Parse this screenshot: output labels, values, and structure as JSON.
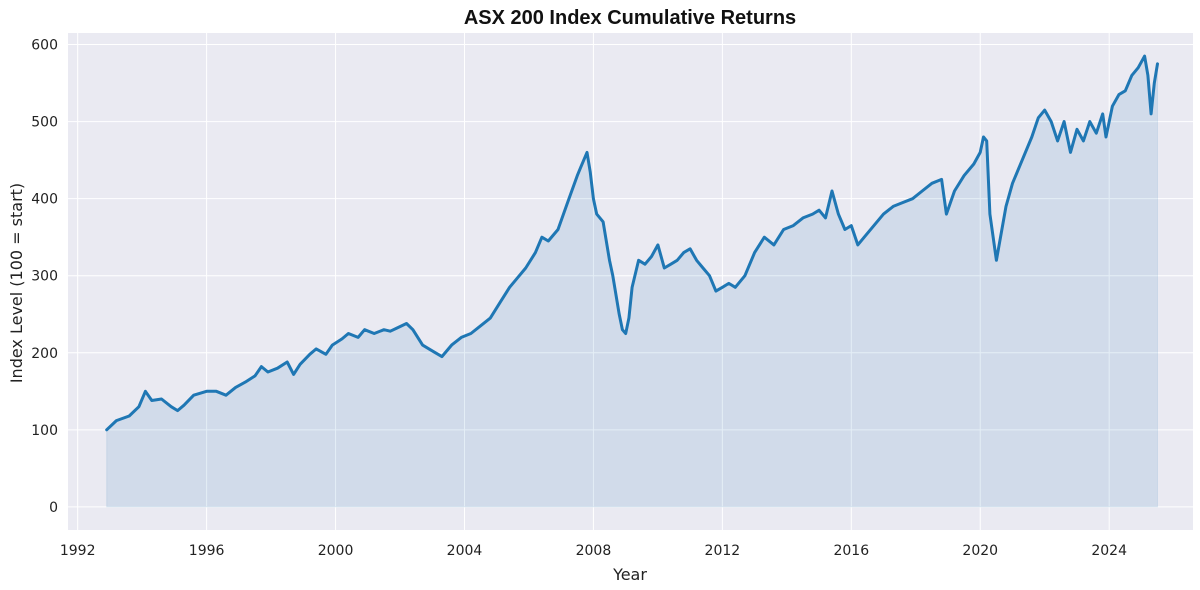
{
  "chart_data": {
    "type": "area",
    "title": "ASX 200 Index Cumulative Returns",
    "xlabel": "Year",
    "ylabel": "Index Level (100 = start)",
    "xlim": [
      1991.7,
      2026.6
    ],
    "ylim": [
      -30,
      615
    ],
    "x_ticks": [
      1992,
      1996,
      2000,
      2004,
      2008,
      2012,
      2016,
      2020,
      2024
    ],
    "y_ticks": [
      0,
      100,
      200,
      300,
      400,
      500,
      600
    ],
    "x_tick_labels": [
      "1992",
      "1996",
      "2000",
      "2004",
      "2008",
      "2012",
      "2016",
      "2020",
      "2024"
    ],
    "y_tick_labels": [
      "0",
      "100",
      "200",
      "300",
      "400",
      "500",
      "600"
    ],
    "grid": true,
    "legend": "none",
    "colors": {
      "line": "#1f77b4",
      "fill": "#1f77b4",
      "background": "#eaeaf2",
      "grid": "#ffffff"
    },
    "series": [
      {
        "x": [
          1992.9,
          1993.2,
          1993.6,
          1993.9,
          1994.1,
          1994.3,
          1994.6,
          1994.9,
          1995.1,
          1995.3,
          1995.6,
          1996.0,
          1996.3,
          1996.6,
          1996.9,
          1997.2,
          1997.5,
          1997.7,
          1997.9,
          1998.2,
          1998.5,
          1998.7,
          1998.9,
          1999.2,
          1999.4,
          1999.7,
          1999.9,
          2000.2,
          2000.4,
          2000.7,
          2000.9,
          2001.2,
          2001.5,
          2001.7,
          2001.9,
          2002.2,
          2002.4,
          2002.7,
          2002.9,
          2003.1,
          2003.3,
          2003.6,
          2003.9,
          2004.2,
          2004.5,
          2004.8,
          2005.1,
          2005.4,
          2005.7,
          2005.9,
          2006.2,
          2006.4,
          2006.6,
          2006.9,
          2007.2,
          2007.5,
          2007.6,
          2007.8,
          2007.9,
          2008.0,
          2008.1,
          2008.3,
          2008.5,
          2008.6,
          2008.8,
          2008.9,
          2009.0,
          2009.1,
          2009.2,
          2009.4,
          2009.6,
          2009.8,
          2010.0,
          2010.2,
          2010.4,
          2010.6,
          2010.8,
          2011.0,
          2011.2,
          2011.4,
          2011.6,
          2011.8,
          2012.0,
          2012.2,
          2012.4,
          2012.7,
          2013.0,
          2013.3,
          2013.6,
          2013.9,
          2014.2,
          2014.5,
          2014.8,
          2015.0,
          2015.2,
          2015.4,
          2015.6,
          2015.8,
          2016.0,
          2016.2,
          2016.4,
          2016.7,
          2017.0,
          2017.3,
          2017.6,
          2017.9,
          2018.2,
          2018.5,
          2018.8,
          2018.95,
          2019.2,
          2019.5,
          2019.8,
          2020.0,
          2020.1,
          2020.2,
          2020.3,
          2020.5,
          2020.8,
          2021.0,
          2021.3,
          2021.6,
          2021.8,
          2022.0,
          2022.2,
          2022.4,
          2022.6,
          2022.8,
          2023.0,
          2023.2,
          2023.4,
          2023.6,
          2023.8,
          2023.9,
          2024.1,
          2024.3,
          2024.5,
          2024.7,
          2024.9,
          2025.1,
          2025.2,
          2025.3,
          2025.4,
          2025.5
        ],
        "y": [
          100,
          112,
          118,
          130,
          150,
          138,
          140,
          130,
          125,
          132,
          145,
          150,
          150,
          145,
          155,
          162,
          170,
          182,
          175,
          180,
          188,
          172,
          185,
          198,
          205,
          198,
          210,
          218,
          225,
          220,
          230,
          225,
          230,
          228,
          232,
          238,
          230,
          210,
          205,
          200,
          195,
          210,
          220,
          225,
          235,
          245,
          265,
          285,
          300,
          310,
          330,
          350,
          345,
          360,
          395,
          430,
          440,
          460,
          435,
          400,
          380,
          370,
          320,
          300,
          250,
          230,
          225,
          245,
          285,
          320,
          315,
          325,
          340,
          310,
          315,
          320,
          330,
          335,
          320,
          310,
          300,
          280,
          285,
          290,
          285,
          300,
          330,
          350,
          340,
          360,
          365,
          375,
          380,
          385,
          375,
          410,
          380,
          360,
          365,
          340,
          350,
          365,
          380,
          390,
          395,
          400,
          410,
          420,
          425,
          380,
          410,
          430,
          445,
          460,
          480,
          475,
          380,
          320,
          390,
          420,
          450,
          480,
          505,
          515,
          500,
          475,
          500,
          460,
          490,
          475,
          500,
          485,
          510,
          480,
          520,
          535,
          540,
          560,
          570,
          585,
          560,
          510,
          550,
          575
        ]
      }
    ]
  }
}
